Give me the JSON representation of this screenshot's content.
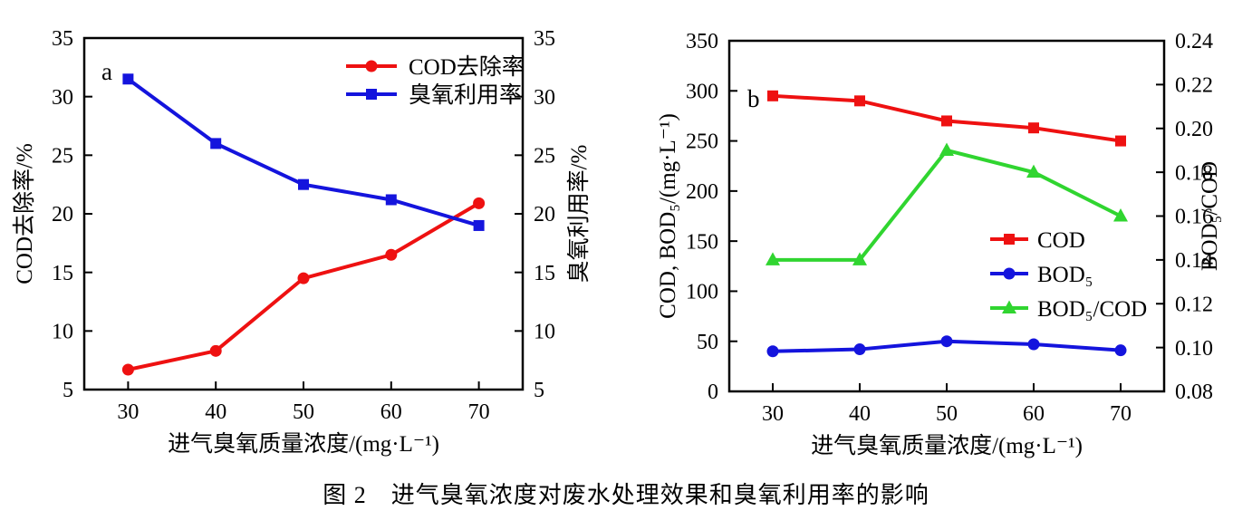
{
  "caption": "图 2　进气臭氧浓度对废水处理效果和臭氧利用率的影响",
  "colors": {
    "red": "#ee1111",
    "blue": "#1414dd",
    "green": "#30d530",
    "axis": "#000000"
  },
  "chart_data": [
    {
      "id": "a",
      "type": "line",
      "panel_label": "a",
      "xlabel": "进气臭氧质量浓度/(mg·L⁻¹)",
      "axes": {
        "x": {
          "lim": [
            25,
            75
          ],
          "ticks": [
            "30",
            "40",
            "50",
            "60",
            "70"
          ]
        },
        "left": {
          "label": "COD去除率/%",
          "lim": [
            5,
            35
          ],
          "ticks": [
            "5",
            "10",
            "15",
            "20",
            "25",
            "30",
            "35"
          ]
        },
        "right": {
          "label": "臭氧利用率/%",
          "lim": [
            5,
            35
          ],
          "ticks": [
            "5",
            "10",
            "15",
            "20",
            "25",
            "30",
            "35"
          ]
        }
      },
      "x_values": [
        30,
        40,
        50,
        60,
        70
      ],
      "series": [
        {
          "name": "COD去除率",
          "axis": "left",
          "color_key": "red",
          "marker": "circle",
          "values": [
            6.7,
            8.3,
            14.5,
            16.5,
            20.9
          ]
        },
        {
          "name": "臭氧利用率",
          "axis": "right",
          "color_key": "blue",
          "marker": "square",
          "values": [
            31.5,
            26.0,
            22.5,
            21.2,
            19.0
          ]
        }
      ]
    },
    {
      "id": "b",
      "type": "line",
      "panel_label": "b",
      "xlabel": "进气臭氧质量浓度/(mg·L⁻¹)",
      "axes": {
        "x": {
          "lim": [
            25,
            75
          ],
          "ticks": [
            "30",
            "40",
            "50",
            "60",
            "70"
          ]
        },
        "left": {
          "label": "COD, BOD₅/(mg·L⁻¹)",
          "lim": [
            0,
            350
          ],
          "ticks": [
            "0",
            "50",
            "100",
            "150",
            "200",
            "250",
            "300",
            "350"
          ]
        },
        "right": {
          "label": "BOD₅/COD",
          "lim": [
            0.08,
            0.24
          ],
          "ticks": [
            "0.08",
            "0.10",
            "0.12",
            "0.14",
            "0.16",
            "0.18",
            "0.20",
            "0.22",
            "0.24"
          ]
        }
      },
      "x_values": [
        30,
        40,
        50,
        60,
        70
      ],
      "series": [
        {
          "name": "COD",
          "axis": "left",
          "color_key": "red",
          "marker": "square",
          "values": [
            295,
            290,
            270,
            263,
            250
          ]
        },
        {
          "name": "BOD₅",
          "axis": "left",
          "color_key": "blue",
          "marker": "circle",
          "values": [
            40,
            42,
            50,
            47,
            41
          ]
        },
        {
          "name": "BOD₅/COD",
          "axis": "right",
          "color_key": "green",
          "marker": "triangle",
          "values": [
            0.14,
            0.14,
            0.19,
            0.18,
            0.16
          ]
        }
      ]
    }
  ]
}
